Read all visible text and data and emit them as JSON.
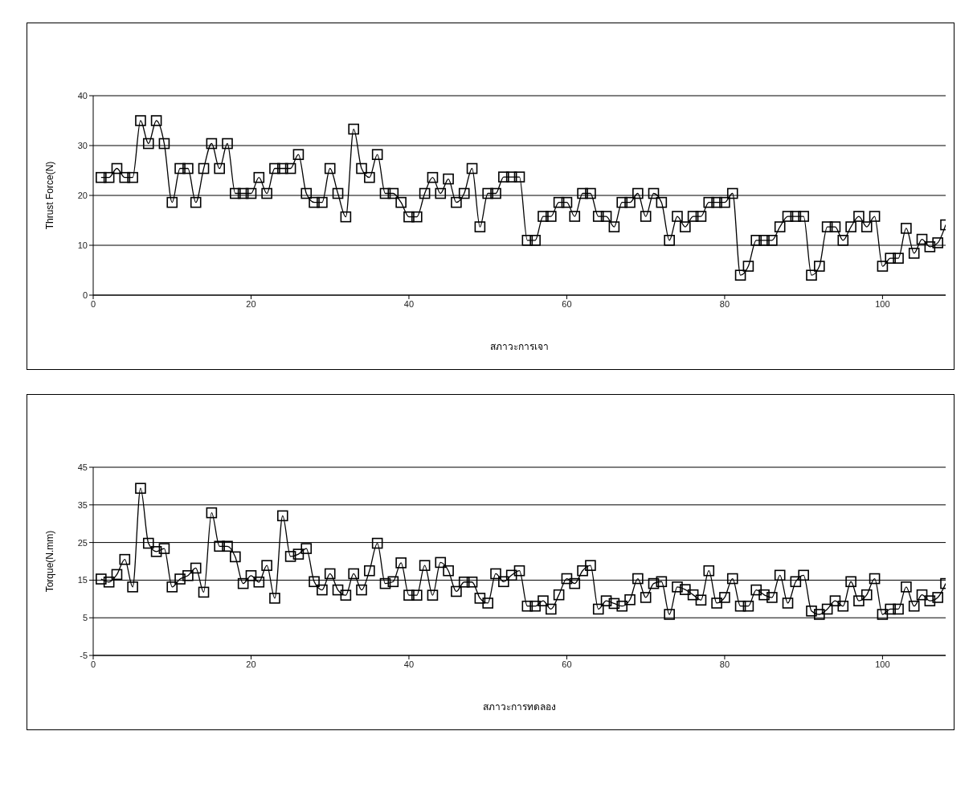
{
  "chart_data": [
    {
      "type": "line",
      "xlabel": "สภาวะการเจา",
      "ylabel": "Thrust Force(N)",
      "x": [
        1,
        2,
        3,
        4,
        5,
        6,
        7,
        8,
        9,
        10,
        11,
        12,
        13,
        14,
        15,
        16,
        17,
        18,
        19,
        20,
        21,
        22,
        23,
        24,
        25,
        26,
        27,
        28,
        29,
        30,
        31,
        32,
        33,
        34,
        35,
        36,
        37,
        38,
        39,
        40,
        41,
        42,
        43,
        44,
        45,
        46,
        47,
        48,
        49,
        50,
        51,
        52,
        53,
        54,
        55,
        56,
        57,
        58,
        59,
        60,
        61,
        62,
        63,
        64,
        65,
        66,
        67,
        68,
        69,
        70,
        71,
        72,
        73,
        74,
        75,
        76,
        77,
        78,
        79,
        80,
        81,
        82,
        83,
        84,
        85,
        86,
        87,
        88,
        89,
        90,
        91,
        92,
        93,
        94,
        95,
        96,
        97,
        98,
        99,
        100,
        101,
        102,
        103,
        104,
        105,
        106,
        107,
        108
      ],
      "series": [
        {
          "color": "#000000",
          "values": [
            23.6,
            23.6,
            25.4,
            23.6,
            23.6,
            35,
            30.4,
            35,
            30.4,
            18.6,
            25.4,
            25.4,
            18.6,
            25.4,
            30.4,
            25.4,
            30.4,
            20.4,
            20.4,
            20.4,
            23.6,
            20.4,
            25.4,
            25.4,
            25.4,
            28.2,
            20.4,
            18.6,
            18.6,
            25.4,
            20.4,
            15.7,
            33.3,
            25.4,
            23.6,
            28.2,
            20.4,
            20.4,
            18.6,
            15.7,
            15.7,
            20.4,
            23.6,
            20.4,
            23.3,
            18.6,
            20.4,
            25.4,
            13.7,
            20.4,
            20.4,
            23.7,
            23.7,
            23.7,
            11,
            11,
            15.8,
            15.8,
            18.6,
            18.6,
            15.8,
            20.4,
            20.4,
            15.8,
            15.8,
            13.7,
            18.6,
            18.6,
            20.4,
            15.8,
            20.4,
            18.6,
            11,
            15.8,
            13.7,
            15.8,
            15.8,
            18.6,
            18.6,
            18.6,
            20.4,
            4,
            5.8,
            11,
            11,
            11,
            13.7,
            15.8,
            15.8,
            15.8,
            4,
            5.8,
            13.7,
            13.7,
            11,
            13.7,
            15.8,
            13.7,
            15.8,
            5.8,
            7.4,
            7.4,
            13.4,
            8.4,
            11.2,
            9.7,
            10.5,
            14.1
          ]
        }
      ],
      "xlim": [
        0,
        108
      ],
      "xticks": [
        0,
        20,
        40,
        60,
        80,
        100
      ],
      "ylim": [
        0,
        40
      ],
      "yticks": [
        0,
        10,
        20,
        30,
        40
      ],
      "grid": "y",
      "marker": "square",
      "line_style": "solid"
    },
    {
      "type": "line",
      "xlabel": "สภาวะการทดลอง",
      "ylabel": "Torque(N.mm)",
      "x": [
        1,
        2,
        3,
        4,
        5,
        6,
        7,
        8,
        9,
        10,
        11,
        12,
        13,
        14,
        15,
        16,
        17,
        18,
        19,
        20,
        21,
        22,
        23,
        24,
        25,
        26,
        27,
        28,
        29,
        30,
        31,
        32,
        33,
        34,
        35,
        36,
        37,
        38,
        39,
        40,
        41,
        42,
        43,
        44,
        45,
        46,
        47,
        48,
        49,
        50,
        51,
        52,
        53,
        54,
        55,
        56,
        57,
        58,
        59,
        60,
        61,
        62,
        63,
        64,
        65,
        66,
        67,
        68,
        69,
        70,
        71,
        72,
        73,
        74,
        75,
        76,
        77,
        78,
        79,
        80,
        81,
        82,
        83,
        84,
        85,
        86,
        87,
        88,
        89,
        90,
        91,
        92,
        93,
        94,
        95,
        96,
        97,
        98,
        99,
        100,
        101,
        102,
        103,
        104,
        105,
        106,
        107,
        108
      ],
      "series": [
        {
          "color": "#000000",
          "values": [
            15.3,
            14.5,
            16.5,
            20.5,
            13.2,
            39.4,
            24.8,
            22.6,
            23.4,
            13.2,
            15.3,
            16.2,
            18.2,
            11.8,
            32.9,
            24,
            24,
            21.2,
            14.1,
            16.2,
            14.5,
            18.9,
            10.2,
            32.1,
            21.3,
            21.9,
            23.4,
            14.6,
            12.4,
            16.7,
            12.4,
            11,
            16.7,
            12.4,
            17.5,
            24.8,
            14.1,
            14.6,
            19.6,
            11,
            11,
            18.9,
            11,
            19.7,
            17.5,
            12,
            14.5,
            14.5,
            10.2,
            8.9,
            16.7,
            14.6,
            16.3,
            17.5,
            8.1,
            8.1,
            9.5,
            7.3,
            11.1,
            15.4,
            14.1,
            17.5,
            18.9,
            7.3,
            9.5,
            8.8,
            8.1,
            9.8,
            15.4,
            10.4,
            14.1,
            14.6,
            5.9,
            13.2,
            12.5,
            11.1,
            9.7,
            17.5,
            8.9,
            10.4,
            15.4,
            8.1,
            8.1,
            12.4,
            11.1,
            10.4,
            16.3,
            8.9,
            14.6,
            16.3,
            6.8,
            5.9,
            7.3,
            9.5,
            8.1,
            14.6,
            9.5,
            11.1,
            15.4,
            5.9,
            7.3,
            7.3,
            13.2,
            8.1,
            11.1,
            9.5,
            10.4,
            14.1
          ]
        }
      ],
      "xlim": [
        0,
        108
      ],
      "xticks": [
        0,
        20,
        40,
        60,
        80,
        100
      ],
      "ylim": [
        -5,
        45
      ],
      "yticks": [
        -5,
        5,
        15,
        25,
        35,
        45
      ],
      "grid": "y",
      "marker": "square",
      "line_style": "solid"
    }
  ]
}
